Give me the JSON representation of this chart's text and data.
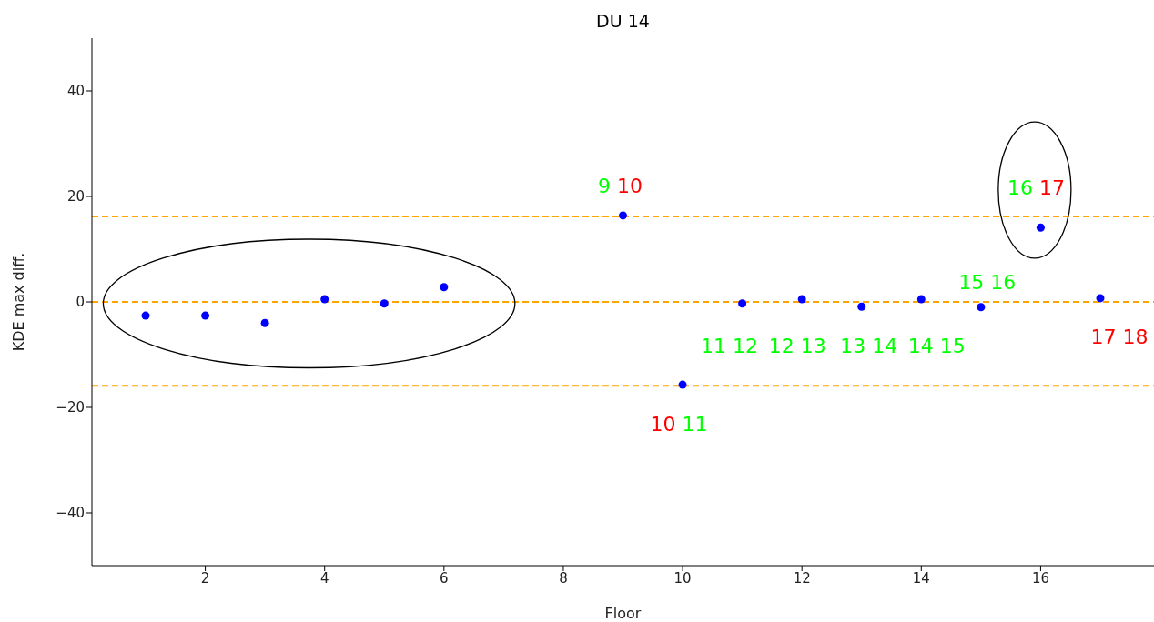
{
  "chart_data": {
    "type": "scatter",
    "title": "DU 14",
    "xlabel": "Floor",
    "ylabel": "KDE max diff.",
    "x": [
      1,
      2,
      3,
      4,
      5,
      6,
      9,
      10,
      11,
      12,
      13,
      14,
      15,
      16,
      17
    ],
    "series": [
      {
        "color": "#0000ff",
        "values": [
          -2.6,
          -2.6,
          -4.0,
          0.5,
          -0.3,
          2.8,
          16.4,
          -15.7,
          -0.3,
          0.5,
          -0.9,
          0.5,
          -1.0,
          14.1,
          0.7
        ]
      }
    ],
    "marker": "circle",
    "grid": false,
    "xlim": [
      0.1,
      17.9
    ],
    "xticks": [
      2,
      4,
      6,
      8,
      10,
      12,
      14,
      16
    ],
    "ylim": [
      -50,
      50
    ],
    "yticks": [
      -40,
      -20,
      0,
      20,
      40
    ],
    "ref_lines": [
      {
        "axis": "y",
        "value": 16.2,
        "color": "#ffa500",
        "line_style": "dashed"
      },
      {
        "axis": "y",
        "value": 0,
        "color": "#ffa500",
        "line_style": "dashed"
      },
      {
        "axis": "y",
        "value": -15.9,
        "color": "#ffa500",
        "line_style": "dashed"
      }
    ],
    "annotations": [
      {
        "text": "9 10",
        "x": 9,
        "y": 16.4
      },
      {
        "text": "10 11",
        "x": 10,
        "y": -15.7
      },
      {
        "text": "11 12",
        "x": 11,
        "y": -0.3
      },
      {
        "text": "12 13",
        "x": 12,
        "y": 0.5
      },
      {
        "text": "13 14",
        "x": 13,
        "y": -0.9
      },
      {
        "text": "14 15",
        "x": 14,
        "y": 0.5
      },
      {
        "text": "15 16",
        "x": 15,
        "y": -1.0
      },
      {
        "text": "16 17",
        "x": 16,
        "y": 14.1
      },
      {
        "text": "17 18",
        "x": 17,
        "y": 0.7
      }
    ]
  }
}
